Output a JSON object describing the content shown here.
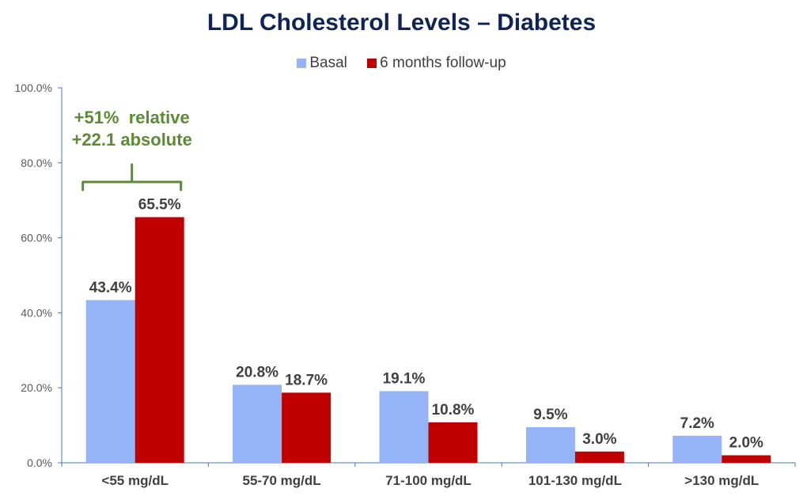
{
  "chart_data": {
    "type": "bar",
    "title": "LDL Cholesterol Levels – Diabetes",
    "xlabel": "",
    "ylabel": "",
    "ylim": [
      0,
      100
    ],
    "yticks": [
      "0.0%",
      "20.0%",
      "40.0%",
      "60.0%",
      "80.0%",
      "100.0%"
    ],
    "ytick_values": [
      0,
      20,
      40,
      60,
      80,
      100
    ],
    "categories": [
      "<55 mg/dL",
      "55-70 mg/dL",
      "71-100 mg/dL",
      "101-130 mg/dL",
      ">130 mg/dL"
    ],
    "series": [
      {
        "name": "Basal",
        "color": "#95b3f7",
        "values": [
          43.4,
          20.8,
          19.1,
          9.5,
          7.2
        ],
        "labels": [
          "43.4%",
          "20.8%",
          "19.1%",
          "9.5%",
          "7.2%"
        ]
      },
      {
        "name": "6 months follow-up",
        "color": "#c00000",
        "values": [
          65.5,
          18.7,
          10.8,
          3.0,
          2.0
        ],
        "labels": [
          "65.5%",
          "18.7%",
          "10.8%",
          "3.0%",
          "2.0%"
        ]
      }
    ],
    "legend_position": "top-center",
    "grid": false,
    "annotation": {
      "lines": [
        "+51%  relative",
        "+22.1 absolute"
      ],
      "category": "<55 mg/dL",
      "color": "#5b8b32"
    }
  }
}
